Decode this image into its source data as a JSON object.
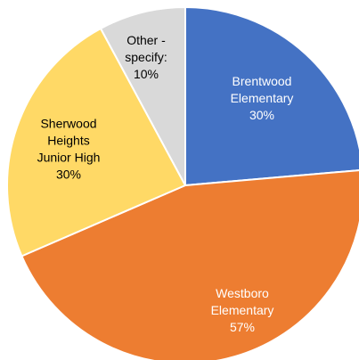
{
  "chart_data": {
    "type": "pie",
    "title": "",
    "slices": [
      {
        "name": "Brentwood Elementary",
        "label_lines": [
          "Brentwood",
          "Elementary",
          "30%"
        ],
        "value": 30,
        "label": "30%",
        "color": "#4472C4",
        "text_color": "#ffffff"
      },
      {
        "name": "Westboro Elementary",
        "label_lines": [
          "Westboro",
          "Elementary",
          "57%"
        ],
        "value": 57,
        "label": "57%",
        "color": "#ED7D31",
        "text_color": "#ffffff"
      },
      {
        "name": "Sherwood Heights Junior High",
        "label_lines": [
          "Sherwood",
          "Heights",
          "Junior High",
          "30%"
        ],
        "value": 30,
        "label": "30%",
        "color": "#FFD966",
        "text_color": "#000000"
      },
      {
        "name": "Other - specify:",
        "label_lines": [
          "Other -",
          "specify:",
          "10%"
        ],
        "value": 10,
        "label": "10%",
        "color": "#D9D9D9",
        "text_color": "#000000"
      }
    ]
  }
}
